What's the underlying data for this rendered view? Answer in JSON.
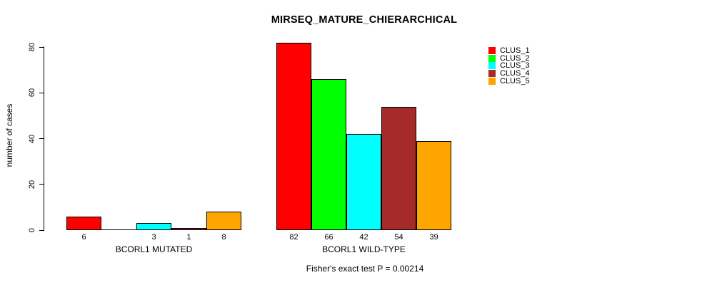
{
  "chart_data": {
    "type": "bar",
    "title": "MIRSEQ_MATURE_CHIERARCHICAL",
    "ylabel": "number of cases",
    "ylim": [
      0,
      80
    ],
    "yticks": [
      0,
      20,
      40,
      60,
      80
    ],
    "grid": false,
    "legend_position": "right",
    "clusters": [
      {
        "name": "CLUS_1",
        "color": "#FF0000"
      },
      {
        "name": "CLUS_2",
        "color": "#00FF00"
      },
      {
        "name": "CLUS_3",
        "color": "#00FFFF"
      },
      {
        "name": "CLUS_4",
        "color": "#A52A2A"
      },
      {
        "name": "CLUS_5",
        "color": "#FFA500"
      }
    ],
    "groups": [
      {
        "label": "BCORL1 MUTATED",
        "values": [
          6,
          0,
          3,
          1,
          8
        ],
        "bar_labels": [
          "6",
          "",
          "3",
          "1",
          "8"
        ]
      },
      {
        "label": "BCORL1 WILD-TYPE",
        "values": [
          82,
          66,
          42,
          54,
          39
        ],
        "bar_labels": [
          "82",
          "66",
          "42",
          "54",
          "39"
        ]
      }
    ],
    "footnote": "Fisher's exact test P = 0.00214"
  }
}
